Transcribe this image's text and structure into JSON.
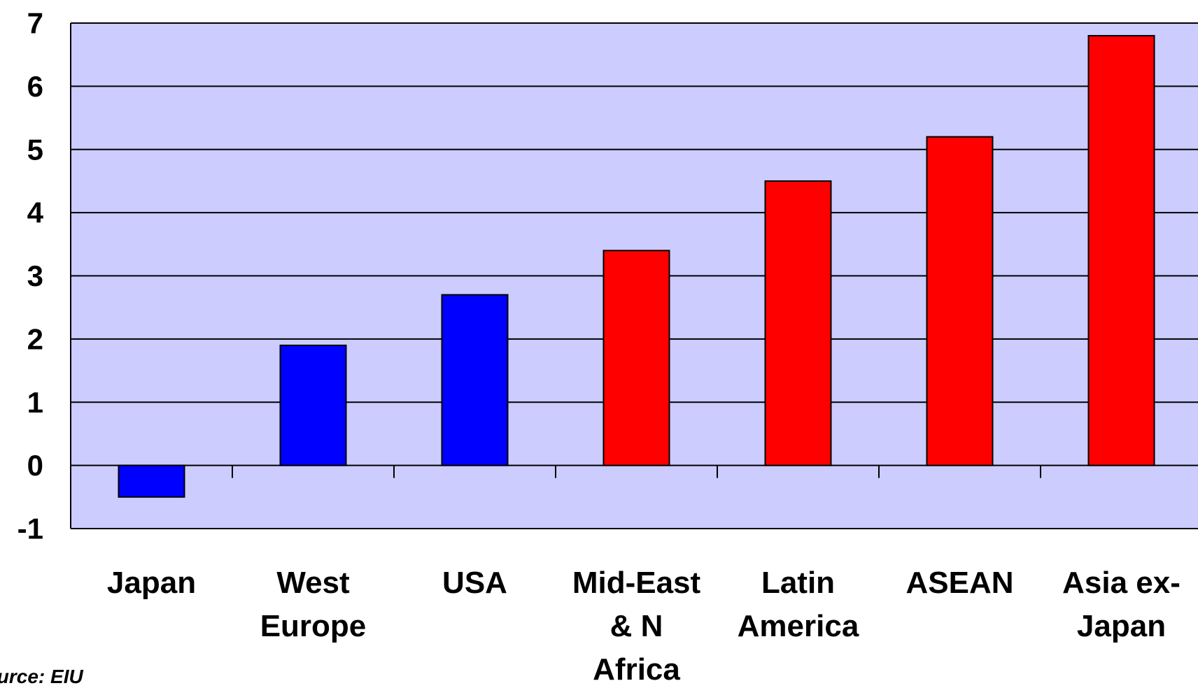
{
  "chart_data": {
    "type": "bar",
    "categories": [
      "Japan",
      "West Europe",
      "USA",
      "Mid-East & N Africa",
      "Latin America",
      "ASEAN",
      "Asia ex-Japan"
    ],
    "category_lines": [
      [
        "Japan"
      ],
      [
        "West",
        "Europe"
      ],
      [
        "USA"
      ],
      [
        "Mid-East",
        "& N",
        "Africa"
      ],
      [
        "Latin",
        "America"
      ],
      [
        "ASEAN"
      ],
      [
        "Asia ex-",
        "Japan"
      ]
    ],
    "values": [
      -0.5,
      1.9,
      2.7,
      3.4,
      4.5,
      5.2,
      6.8
    ],
    "bar_colors": [
      "#0000ff",
      "#0000ff",
      "#0000ff",
      "#ff0000",
      "#ff0000",
      "#ff0000",
      "#ff0000"
    ],
    "ylim": [
      -1,
      7
    ],
    "yticks": [
      -1,
      0,
      1,
      2,
      3,
      4,
      5,
      6,
      7
    ],
    "grid": true,
    "title": "",
    "xlabel": "",
    "ylabel": "",
    "plot_background": "#ccccff"
  },
  "source": "Source: EIU"
}
